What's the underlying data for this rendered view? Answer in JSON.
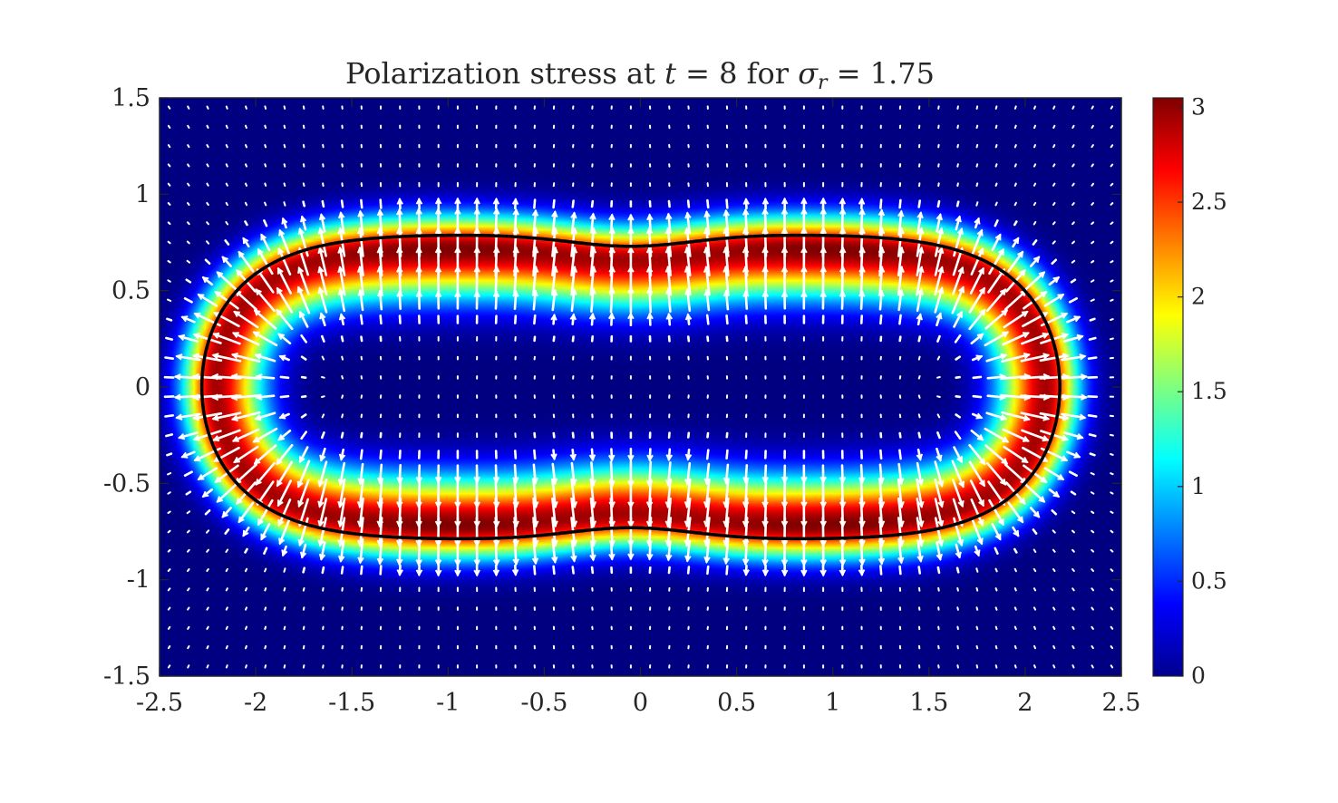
{
  "chart_data": {
    "type": "heatmap",
    "title": {
      "text": "Polarization stress at",
      "var_t": "t",
      "eq1": " = 8 for ",
      "var_sigma": "σ",
      "var_sigma_sub": "r",
      "eq2": " = 1.75"
    },
    "xlabel": "",
    "ylabel": "",
    "xlim": [
      -2.5,
      2.5
    ],
    "ylim": [
      -1.5,
      1.5
    ],
    "x_ticks": [
      "-2.5",
      "-2",
      "-1.5",
      "-1",
      "-0.5",
      "0",
      "0.5",
      "1",
      "1.5",
      "2",
      "2.5"
    ],
    "y_ticks": [
      "1.5",
      "1",
      "0.5",
      "0",
      "-0.5",
      "-1",
      "-1.5"
    ],
    "colorbar": {
      "colormap": "jet",
      "clim": [
        0,
        3.05
      ],
      "ticks": [
        "3",
        "2.5",
        "2",
        "1.5",
        "1",
        "0.5",
        "0"
      ]
    },
    "field": {
      "description": "stress magnitude concentrated in a band around a peanut-shaped interface",
      "peak_value": 3.0,
      "background_value": 0.0
    },
    "interface_curve": {
      "color": "#000000",
      "x_extent": [
        -2.28,
        2.18
      ],
      "y_max_at_lobes": 0.79,
      "y_at_waist": 0.73,
      "lobe_centers_x": [
        -1.0,
        0.95
      ]
    },
    "vector_field": {
      "color": "#ffffff",
      "grid_spacing": 0.1,
      "direction": "normal to interface"
    }
  }
}
